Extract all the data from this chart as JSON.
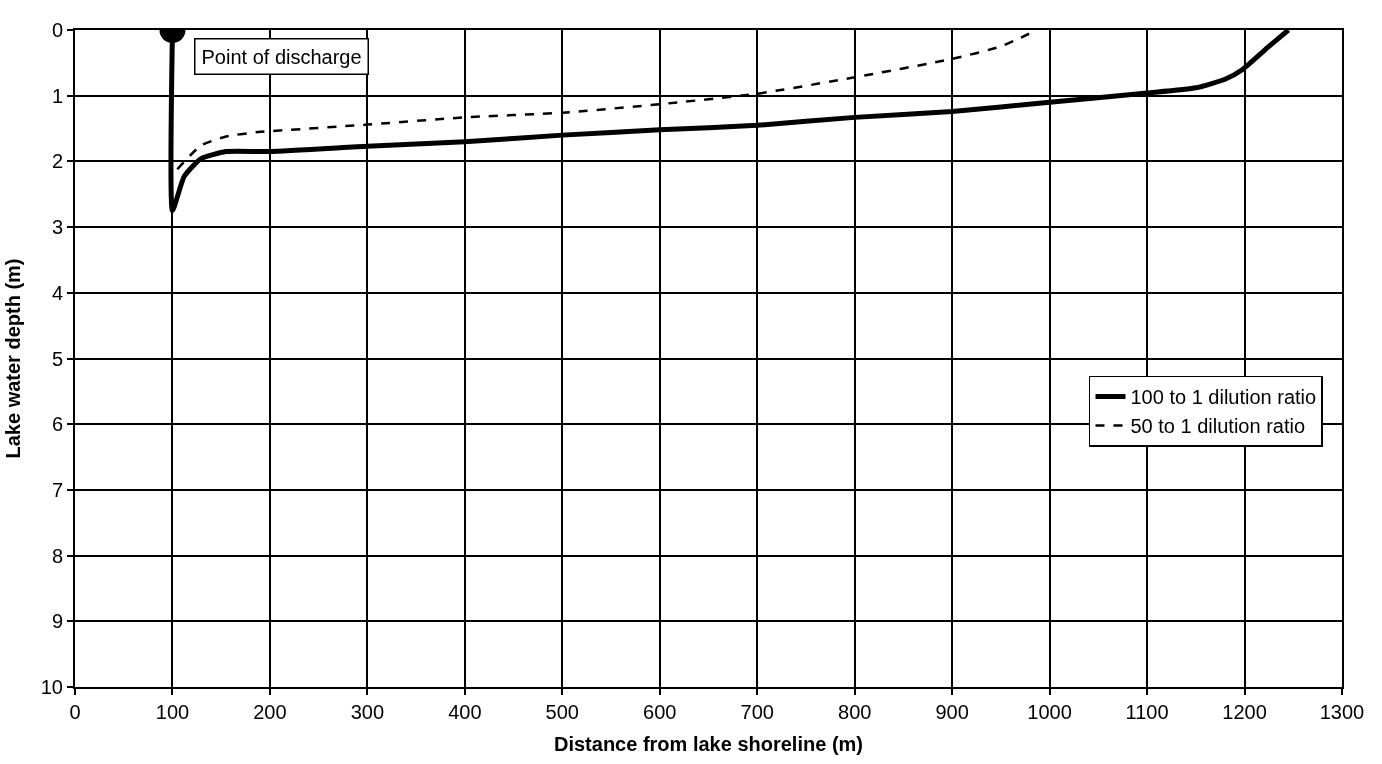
{
  "chart_data": {
    "type": "line",
    "xlabel": "Distance from lake shoreline (m)",
    "ylabel": "Lake water depth (m)",
    "xlim": [
      0,
      1300
    ],
    "xticks": [
      0,
      100,
      200,
      300,
      400,
      500,
      600,
      700,
      800,
      900,
      1000,
      1100,
      1200,
      1300
    ],
    "ylim": [
      10,
      0
    ],
    "yticks": [
      0,
      1,
      2,
      3,
      4,
      5,
      6,
      7,
      8,
      9,
      10
    ],
    "grid": true,
    "legend": "right",
    "marker": "none",
    "annotations": [
      {
        "text": "Point of discharge",
        "x": 100,
        "y": 0
      }
    ],
    "series": [
      {
        "name": "100 to 1 dilution ratio",
        "color": "#000000",
        "line_style": "solid",
        "x": [
          100,
          100,
          112,
          129,
          155,
          200,
          300,
          400,
          500,
          600,
          700,
          800,
          900,
          1000,
          1100,
          1150,
          1180,
          1198,
          1225,
          1245
        ],
        "values": [
          0,
          2.75,
          2.23,
          1.96,
          1.85,
          1.85,
          1.77,
          1.7,
          1.6,
          1.52,
          1.45,
          1.33,
          1.24,
          1.1,
          0.96,
          0.88,
          0.75,
          0.6,
          0.25,
          0
        ]
      },
      {
        "name": "50 to 1 dilution ratio",
        "color": "#000000",
        "line_style": "dashed",
        "x": [
          105,
          129,
          155,
          190,
          200,
          300,
          400,
          500,
          600,
          700,
          800,
          900,
          950,
          987
        ],
        "values": [
          2.12,
          1.76,
          1.62,
          1.55,
          1.54,
          1.44,
          1.33,
          1.26,
          1.13,
          0.97,
          0.72,
          0.44,
          0.25,
          0
        ]
      },
      {
        "type": "scatter",
        "marker": "circle",
        "color": "#000000",
        "x": [
          100
        ],
        "values": [
          0
        ]
      }
    ]
  }
}
